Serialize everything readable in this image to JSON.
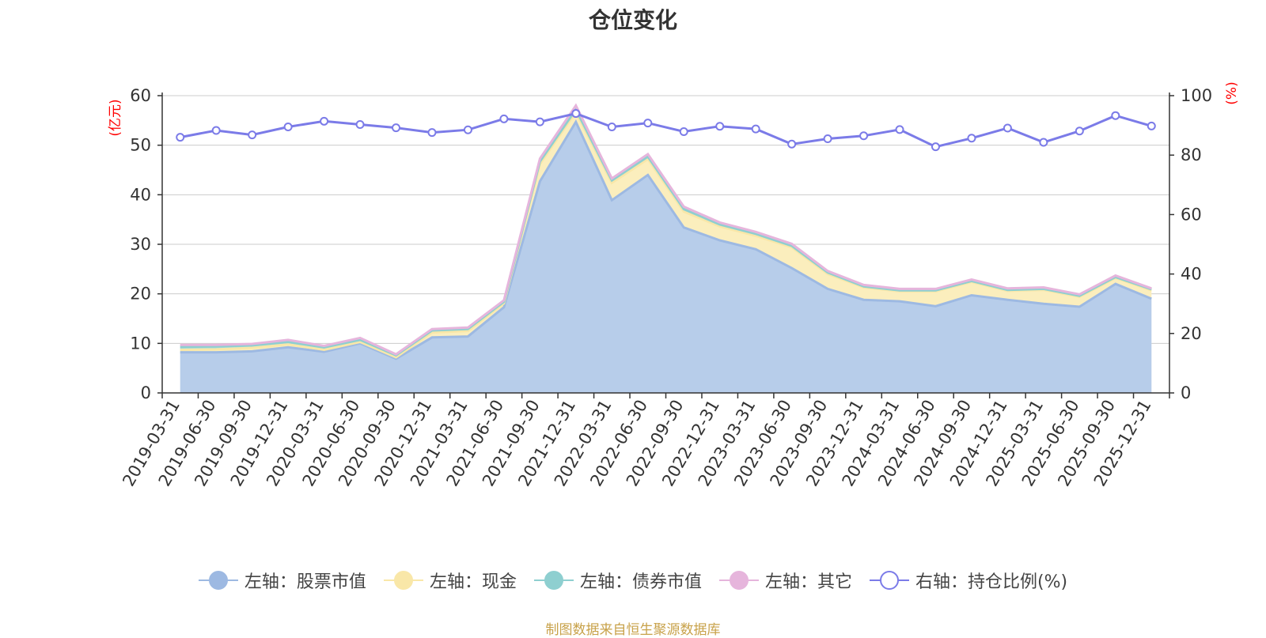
{
  "chart_data": {
    "type": "area",
    "title": "仓位变化",
    "left_unit": "(亿元)",
    "right_unit": "(%)",
    "left_ylim": [
      0,
      60
    ],
    "right_ylim": [
      0,
      100
    ],
    "left_ticks": [
      0,
      10,
      20,
      30,
      40,
      50,
      60
    ],
    "right_ticks": [
      0,
      20,
      40,
      60,
      80,
      100
    ],
    "grid": true,
    "legend_position": "bottom",
    "categories": [
      "2019-03-31",
      "2019-06-30",
      "2019-09-30",
      "2019-12-31",
      "2020-03-31",
      "2020-06-30",
      "2020-09-30",
      "2020-12-31",
      "2021-03-31",
      "2021-06-30",
      "2021-09-30",
      "2021-12-31",
      "2022-03-31",
      "2022-06-30",
      "2022-09-30",
      "2022-12-31",
      "2023-03-31",
      "2023-06-30",
      "2023-09-30",
      "2023-12-31",
      "2024-03-31",
      "2024-06-30",
      "2024-09-30",
      "2024-12-31",
      "2025-03-31",
      "2025-06-30",
      "2025-09-30",
      "2025-12-31"
    ],
    "series": [
      {
        "name": "左轴：股票市值",
        "axis": "left",
        "stack": true,
        "color": "#9db9e2",
        "fill": "#b7cdea",
        "values": [
          8.2,
          8.2,
          8.4,
          9.2,
          8.3,
          10.0,
          6.9,
          11.2,
          11.4,
          17.3,
          42.7,
          54.7,
          38.9,
          44.0,
          33.4,
          30.8,
          29.0,
          25.2,
          21.0,
          18.8,
          18.5,
          17.5,
          19.7,
          18.8,
          18.0,
          17.4,
          22.0,
          19.0
        ]
      },
      {
        "name": "左轴：现金",
        "axis": "left",
        "stack": true,
        "color": "#f9e7a8",
        "fill": "#fbeebd",
        "values": [
          0.5,
          0.6,
          0.7,
          0.6,
          0.4,
          0.3,
          0.3,
          1.0,
          1.1,
          0.8,
          3.5,
          2.0,
          3.5,
          3.2,
          3.2,
          2.8,
          2.7,
          4.2,
          3.0,
          2.5,
          2.0,
          3.0,
          2.7,
          1.8,
          2.8,
          2.0,
          1.2,
          1.7
        ]
      },
      {
        "name": "左轴：债券市值",
        "axis": "left",
        "stack": true,
        "color": "#8ecfd0",
        "fill": "#a8dadb",
        "values": [
          0.6,
          0.6,
          0.5,
          0.5,
          0.5,
          0.4,
          0.4,
          0.4,
          0.4,
          0.3,
          0.5,
          0.5,
          0.5,
          0.5,
          0.5,
          0.4,
          0.4,
          0.3,
          0.3,
          0.2,
          0.2,
          0.2,
          0.2,
          0.2,
          0.2,
          0.2,
          0.2,
          0.2
        ]
      },
      {
        "name": "左轴：其它",
        "axis": "left",
        "stack": true,
        "color": "#e6b5dc",
        "fill": "#efcbe7",
        "values": [
          0.4,
          0.3,
          0.3,
          0.4,
          0.3,
          0.4,
          0.2,
          0.3,
          0.3,
          0.3,
          0.6,
          0.8,
          0.4,
          0.5,
          0.5,
          0.4,
          0.4,
          0.4,
          0.3,
          0.3,
          0.3,
          0.3,
          0.3,
          0.3,
          0.3,
          0.3,
          0.3,
          0.2
        ]
      },
      {
        "name": "右轴：持仓比例(%)",
        "axis": "right",
        "stack": false,
        "color": "#7b7be8",
        "values": [
          86.0,
          88.3,
          86.8,
          89.5,
          91.4,
          90.3,
          89.2,
          87.6,
          88.5,
          92.2,
          91.2,
          94.0,
          89.5,
          90.8,
          87.9,
          89.7,
          88.8,
          83.7,
          85.5,
          86.5,
          88.6,
          82.8,
          85.7,
          89.1,
          84.3,
          88.1,
          93.3,
          89.8
        ]
      }
    ]
  },
  "legend": [
    {
      "label": "左轴：股票市值",
      "line_color": "#9db9e2",
      "dot_fill": "#9db9e2",
      "dot_border": "#9db9e2"
    },
    {
      "label": "左轴：现金",
      "line_color": "#f9e7a8",
      "dot_fill": "#f9e7a8",
      "dot_border": "#f9e7a8"
    },
    {
      "label": "左轴：债券市值",
      "line_color": "#8ecfd0",
      "dot_fill": "#8ecfd0",
      "dot_border": "#8ecfd0"
    },
    {
      "label": "左轴：其它",
      "line_color": "#e6b5dc",
      "dot_fill": "#e6b5dc",
      "dot_border": "#e6b5dc"
    },
    {
      "label": "右轴：持仓比例(%)",
      "line_color": "#7b7be8",
      "dot_fill": "#ffffff",
      "dot_border": "#7b7be8"
    }
  ],
  "footer": "制图数据来自恒生聚源数据库"
}
